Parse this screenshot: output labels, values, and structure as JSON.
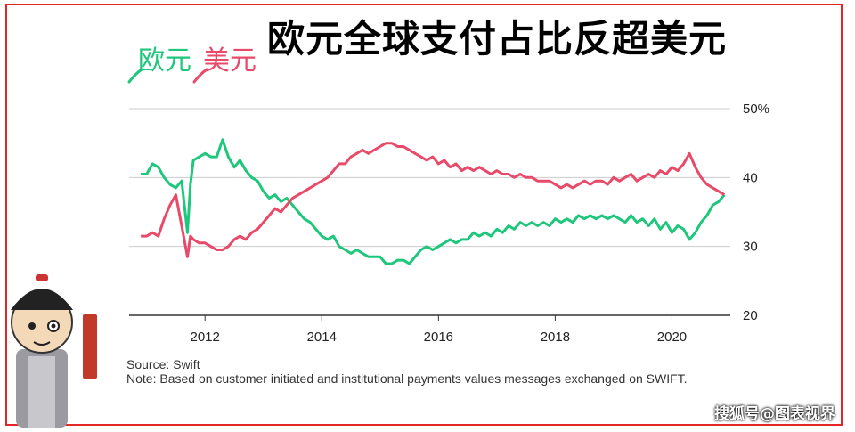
{
  "title": "欧元全球支付占比反超美元",
  "source": "Source: Swift",
  "note": "Note: Based on customer initiated and institutional payments values messages exchanged on SWIFT.",
  "watermark": "搜狐号@图表视界",
  "colors": {
    "euro": "#1ec77b",
    "usd": "#e84a6a",
    "grid": "#cccccc",
    "axis": "#333333",
    "frame": "#e32626"
  },
  "chart_data": {
    "type": "line",
    "title": "欧元全球支付占比反超美元",
    "xlabel": "",
    "ylabel": "",
    "xlim": [
      2010.7,
      2021.0
    ],
    "ylim": [
      20,
      50
    ],
    "xticks": [
      2012,
      2014,
      2016,
      2018,
      2020
    ],
    "xtick_labels": [
      "2012",
      "2014",
      "2016",
      "2018",
      "2020"
    ],
    "yticks": [
      20,
      30,
      40,
      50
    ],
    "ytick_labels": [
      "20",
      "30",
      "40",
      "50%"
    ],
    "grid": true,
    "series": [
      {
        "name": "欧元",
        "x": [
          2010.9,
          2011.0,
          2011.1,
          2011.2,
          2011.3,
          2011.4,
          2011.5,
          2011.6,
          2011.7,
          2011.75,
          2011.8,
          2011.9,
          2012.0,
          2012.1,
          2012.2,
          2012.3,
          2012.4,
          2012.5,
          2012.6,
          2012.7,
          2012.8,
          2012.9,
          2013.0,
          2013.1,
          2013.2,
          2013.3,
          2013.4,
          2013.5,
          2013.6,
          2013.7,
          2013.8,
          2013.9,
          2014.0,
          2014.1,
          2014.2,
          2014.3,
          2014.4,
          2014.5,
          2014.6,
          2014.7,
          2014.8,
          2014.9,
          2015.0,
          2015.1,
          2015.2,
          2015.3,
          2015.4,
          2015.5,
          2015.6,
          2015.7,
          2015.8,
          2015.9,
          2016.0,
          2016.1,
          2016.2,
          2016.3,
          2016.4,
          2016.5,
          2016.6,
          2016.7,
          2016.8,
          2016.9,
          2017.0,
          2017.1,
          2017.2,
          2017.3,
          2017.4,
          2017.5,
          2017.6,
          2017.7,
          2017.8,
          2017.9,
          2018.0,
          2018.1,
          2018.2,
          2018.3,
          2018.4,
          2018.5,
          2018.6,
          2018.7,
          2018.8,
          2018.9,
          2019.0,
          2019.1,
          2019.2,
          2019.3,
          2019.4,
          2019.5,
          2019.6,
          2019.7,
          2019.8,
          2019.9,
          2020.0,
          2020.1,
          2020.2,
          2020.3,
          2020.4,
          2020.5,
          2020.6,
          2020.7,
          2020.8,
          2020.9
        ],
        "values": [
          40.5,
          40.5,
          42.0,
          41.5,
          40.0,
          39.0,
          38.5,
          39.5,
          32.0,
          39.0,
          42.5,
          43.0,
          43.5,
          43.0,
          43.0,
          45.5,
          43.0,
          41.5,
          42.5,
          41.0,
          40.0,
          39.5,
          38.0,
          37.0,
          37.5,
          36.5,
          37.0,
          36.0,
          35.0,
          34.0,
          33.5,
          32.5,
          31.5,
          31.0,
          31.5,
          30.0,
          29.5,
          29.0,
          29.5,
          29.0,
          28.5,
          28.5,
          28.5,
          27.5,
          27.5,
          28.0,
          28.0,
          27.5,
          28.5,
          29.5,
          30.0,
          29.5,
          30.0,
          30.5,
          31.0,
          30.5,
          31.0,
          31.0,
          32.0,
          31.5,
          32.0,
          31.5,
          32.5,
          32.0,
          33.0,
          32.5,
          33.5,
          33.0,
          33.5,
          33.0,
          33.5,
          33.0,
          34.0,
          33.5,
          34.0,
          33.5,
          34.5,
          34.0,
          34.5,
          34.0,
          34.5,
          34.0,
          34.5,
          34.0,
          33.5,
          34.5,
          33.5,
          34.0,
          33.0,
          34.0,
          32.5,
          33.5,
          32.0,
          33.0,
          32.5,
          31.0,
          32.0,
          33.5,
          34.5,
          36.0,
          36.5,
          37.5
        ],
        "color": "#1ec77b"
      },
      {
        "name": "美元",
        "x": [
          2010.9,
          2011.0,
          2011.1,
          2011.2,
          2011.3,
          2011.4,
          2011.5,
          2011.6,
          2011.7,
          2011.75,
          2011.8,
          2011.9,
          2012.0,
          2012.1,
          2012.2,
          2012.3,
          2012.4,
          2012.5,
          2012.6,
          2012.7,
          2012.8,
          2012.9,
          2013.0,
          2013.1,
          2013.2,
          2013.3,
          2013.4,
          2013.5,
          2013.6,
          2013.7,
          2013.8,
          2013.9,
          2014.0,
          2014.1,
          2014.2,
          2014.3,
          2014.4,
          2014.5,
          2014.6,
          2014.7,
          2014.8,
          2014.9,
          2015.0,
          2015.1,
          2015.2,
          2015.3,
          2015.4,
          2015.5,
          2015.6,
          2015.7,
          2015.8,
          2015.9,
          2016.0,
          2016.1,
          2016.2,
          2016.3,
          2016.4,
          2016.5,
          2016.6,
          2016.7,
          2016.8,
          2016.9,
          2017.0,
          2017.1,
          2017.2,
          2017.3,
          2017.4,
          2017.5,
          2017.6,
          2017.7,
          2017.8,
          2017.9,
          2018.0,
          2018.1,
          2018.2,
          2018.3,
          2018.4,
          2018.5,
          2018.6,
          2018.7,
          2018.8,
          2018.9,
          2019.0,
          2019.1,
          2019.2,
          2019.3,
          2019.4,
          2019.5,
          2019.6,
          2019.7,
          2019.8,
          2019.9,
          2020.0,
          2020.1,
          2020.2,
          2020.3,
          2020.4,
          2020.5,
          2020.6,
          2020.7,
          2020.8,
          2020.9
        ],
        "values": [
          31.5,
          31.5,
          32.0,
          31.5,
          34.0,
          36.0,
          37.5,
          33.0,
          28.5,
          31.5,
          31.0,
          30.5,
          30.5,
          30.0,
          29.5,
          29.5,
          30.0,
          31.0,
          31.5,
          31.0,
          32.0,
          32.5,
          33.5,
          34.5,
          35.5,
          35.0,
          36.0,
          37.0,
          37.5,
          38.0,
          38.5,
          39.0,
          39.5,
          40.0,
          41.0,
          42.0,
          42.0,
          43.0,
          43.5,
          44.0,
          43.5,
          44.0,
          44.5,
          45.0,
          45.0,
          44.5,
          44.5,
          44.0,
          43.5,
          43.0,
          42.5,
          43.0,
          42.0,
          42.5,
          41.5,
          42.0,
          41.0,
          41.5,
          41.0,
          41.5,
          41.0,
          40.5,
          41.0,
          40.5,
          40.5,
          40.0,
          40.5,
          40.0,
          40.0,
          39.5,
          39.5,
          39.5,
          39.0,
          38.5,
          39.0,
          38.5,
          39.0,
          39.5,
          39.0,
          39.5,
          39.5,
          39.0,
          40.0,
          39.5,
          40.0,
          40.5,
          39.5,
          40.0,
          40.5,
          40.0,
          41.0,
          40.5,
          41.5,
          41.0,
          42.0,
          43.5,
          41.5,
          40.0,
          39.0,
          38.5,
          38.0,
          37.5
        ],
        "color": "#e84a6a"
      }
    ]
  }
}
